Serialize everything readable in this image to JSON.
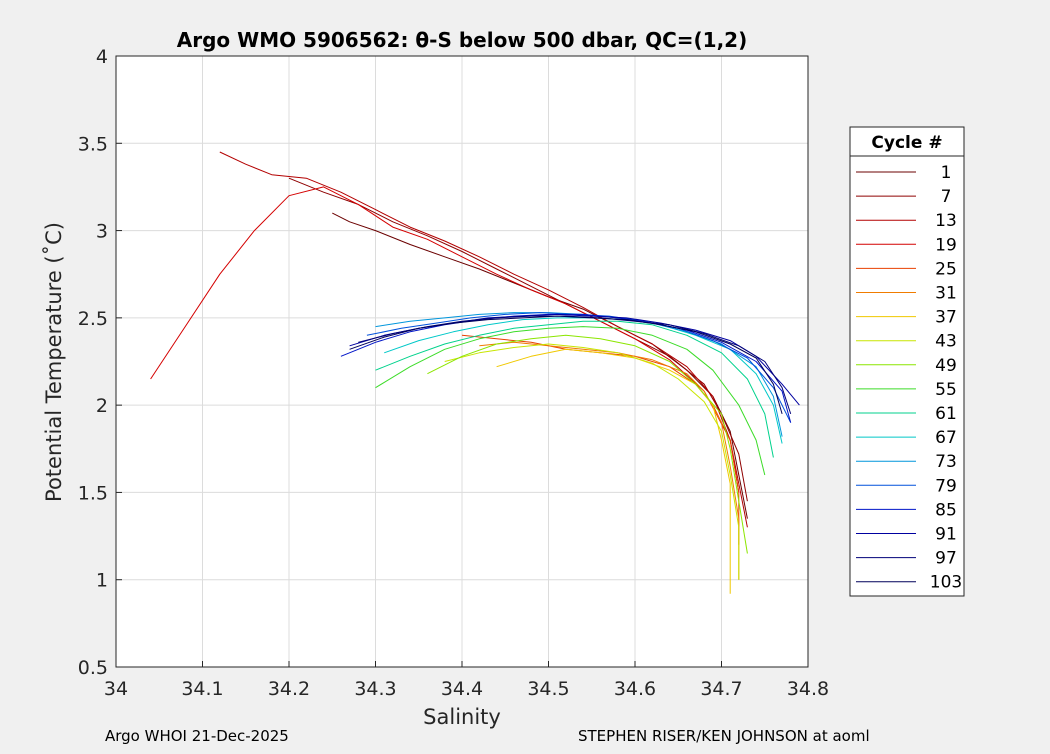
{
  "chart_data": {
    "type": "line",
    "title": "Argo WMO 5906562: θ-S below 500 dbar,  QC=(1,2)",
    "xlabel": "Salinity",
    "ylabel": "Potential Temperature (˚C)",
    "xlim": [
      34.0,
      34.8
    ],
    "ylim": [
      0.5,
      4.0
    ],
    "xticks": [
      34.0,
      34.1,
      34.2,
      34.3,
      34.4,
      34.5,
      34.6,
      34.7,
      34.8
    ],
    "xtick_labels": [
      "34",
      "34.1",
      "34.2",
      "34.3",
      "34.4",
      "34.5",
      "34.6",
      "34.7",
      "34.8"
    ],
    "yticks": [
      0.5,
      1.0,
      1.5,
      2.0,
      2.5,
      3.0,
      3.5,
      4.0
    ],
    "ytick_labels": [
      "0.5",
      "1",
      "1.5",
      "2",
      "2.5",
      "3",
      "3.5",
      "4"
    ],
    "grid": true,
    "legend_position": "right",
    "legend_title": "Cycle #",
    "series": [
      {
        "name": "1",
        "color": "#6b0000",
        "x": [
          34.25,
          34.27,
          34.3,
          34.34,
          34.38,
          34.42,
          34.46,
          34.5,
          34.54,
          34.58,
          34.62,
          34.66,
          34.69,
          34.71,
          34.72,
          34.73
        ],
        "y": [
          3.1,
          3.05,
          3.0,
          2.92,
          2.85,
          2.78,
          2.7,
          2.62,
          2.55,
          2.45,
          2.35,
          2.2,
          2.05,
          1.85,
          1.6,
          1.35
        ]
      },
      {
        "name": "7",
        "color": "#8f0000",
        "x": [
          34.2,
          34.24,
          34.28,
          34.32,
          34.36,
          34.4,
          34.44,
          34.48,
          34.52,
          34.56,
          34.6,
          34.64,
          34.68,
          34.7,
          34.72,
          34.73
        ],
        "y": [
          3.3,
          3.22,
          3.15,
          3.05,
          2.97,
          2.88,
          2.78,
          2.68,
          2.58,
          2.48,
          2.38,
          2.28,
          2.12,
          1.95,
          1.72,
          1.45
        ]
      },
      {
        "name": "13",
        "color": "#b30000",
        "x": [
          34.12,
          34.15,
          34.18,
          34.22,
          34.26,
          34.3,
          34.34,
          34.38,
          34.42,
          34.46,
          34.5,
          34.54,
          34.58,
          34.62,
          34.66,
          34.69,
          34.71,
          34.72,
          34.73
        ],
        "y": [
          3.45,
          3.38,
          3.32,
          3.3,
          3.22,
          3.12,
          3.02,
          2.94,
          2.85,
          2.75,
          2.66,
          2.56,
          2.45,
          2.35,
          2.22,
          2.05,
          1.8,
          1.55,
          1.3
        ]
      },
      {
        "name": "19",
        "color": "#d40000",
        "x": [
          34.04,
          34.08,
          34.12,
          34.16,
          34.2,
          34.24,
          34.28,
          34.32,
          34.36,
          34.4,
          34.44,
          34.48,
          34.52,
          34.56,
          34.6,
          34.64,
          34.68,
          34.71,
          34.72
        ],
        "y": [
          2.15,
          2.45,
          2.75,
          3.0,
          3.2,
          3.25,
          3.15,
          3.02,
          2.95,
          2.85,
          2.75,
          2.66,
          2.58,
          2.48,
          2.38,
          2.26,
          2.08,
          1.8,
          1.5
        ]
      },
      {
        "name": "25",
        "color": "#e84000",
        "x": [
          34.4,
          34.44,
          34.48,
          34.52,
          34.56,
          34.6,
          34.64,
          34.67,
          34.69,
          34.71,
          34.72,
          34.72
        ],
        "y": [
          2.4,
          2.38,
          2.36,
          2.32,
          2.3,
          2.28,
          2.22,
          2.12,
          2.0,
          1.8,
          1.5,
          1.2
        ]
      },
      {
        "name": "31",
        "color": "#f07c00",
        "x": [
          34.42,
          34.46,
          34.5,
          34.54,
          34.58,
          34.62,
          34.66,
          34.68,
          34.7,
          34.71,
          34.72,
          34.72
        ],
        "y": [
          2.34,
          2.36,
          2.34,
          2.32,
          2.3,
          2.26,
          2.18,
          2.08,
          1.9,
          1.65,
          1.35,
          1.0
        ]
      },
      {
        "name": "37",
        "color": "#f0c800",
        "x": [
          34.44,
          34.48,
          34.52,
          34.56,
          34.6,
          34.64,
          34.67,
          34.69,
          34.7,
          34.71,
          34.71,
          34.71
        ],
        "y": [
          2.22,
          2.28,
          2.32,
          2.3,
          2.27,
          2.2,
          2.12,
          2.0,
          1.8,
          1.55,
          1.2,
          0.92
        ]
      },
      {
        "name": "43",
        "color": "#c8e600",
        "x": [
          34.38,
          34.42,
          34.46,
          34.5,
          34.54,
          34.58,
          34.62,
          34.65,
          34.68,
          34.7,
          34.71,
          34.72,
          34.72
        ],
        "y": [
          2.25,
          2.3,
          2.33,
          2.35,
          2.33,
          2.3,
          2.24,
          2.15,
          2.02,
          1.85,
          1.6,
          1.3,
          1.0
        ]
      },
      {
        "name": "49",
        "color": "#8ce600",
        "x": [
          34.36,
          34.4,
          34.44,
          34.48,
          34.52,
          34.56,
          34.6,
          34.64,
          34.67,
          34.7,
          34.71,
          34.72,
          34.73
        ],
        "y": [
          2.18,
          2.28,
          2.35,
          2.38,
          2.4,
          2.38,
          2.34,
          2.25,
          2.12,
          1.95,
          1.75,
          1.45,
          1.15
        ]
      },
      {
        "name": "55",
        "color": "#3cdc28",
        "x": [
          34.3,
          34.34,
          34.38,
          34.42,
          34.46,
          34.5,
          34.54,
          34.58,
          34.62,
          34.66,
          34.69,
          34.72,
          34.74,
          34.75
        ],
        "y": [
          2.1,
          2.22,
          2.32,
          2.38,
          2.42,
          2.44,
          2.45,
          2.44,
          2.4,
          2.32,
          2.2,
          2.0,
          1.8,
          1.6
        ]
      },
      {
        "name": "61",
        "color": "#00d28c",
        "x": [
          34.3,
          34.34,
          34.38,
          34.42,
          34.46,
          34.5,
          34.54,
          34.58,
          34.62,
          34.66,
          34.7,
          34.73,
          34.75,
          34.76
        ],
        "y": [
          2.2,
          2.28,
          2.35,
          2.4,
          2.44,
          2.46,
          2.48,
          2.48,
          2.46,
          2.4,
          2.3,
          2.15,
          1.95,
          1.7
        ]
      },
      {
        "name": "67",
        "color": "#00c8c8",
        "x": [
          34.31,
          34.35,
          34.39,
          34.43,
          34.47,
          34.51,
          34.55,
          34.59,
          34.63,
          34.67,
          34.71,
          34.74,
          34.76,
          34.77
        ],
        "y": [
          2.3,
          2.37,
          2.42,
          2.46,
          2.49,
          2.5,
          2.5,
          2.49,
          2.46,
          2.4,
          2.32,
          2.18,
          2.0,
          1.78
        ]
      },
      {
        "name": "73",
        "color": "#0096dc",
        "x": [
          34.3,
          34.34,
          34.38,
          34.42,
          34.46,
          34.5,
          34.54,
          34.58,
          34.62,
          34.66,
          34.7,
          34.74,
          34.76,
          34.77
        ],
        "y": [
          2.45,
          2.48,
          2.5,
          2.52,
          2.53,
          2.53,
          2.52,
          2.5,
          2.47,
          2.42,
          2.35,
          2.22,
          2.05,
          1.82
        ]
      },
      {
        "name": "79",
        "color": "#0050dc",
        "x": [
          34.29,
          34.33,
          34.37,
          34.41,
          34.45,
          34.49,
          34.53,
          34.57,
          34.61,
          34.65,
          34.69,
          34.73,
          34.76,
          34.78
        ],
        "y": [
          2.4,
          2.44,
          2.47,
          2.5,
          2.52,
          2.53,
          2.52,
          2.51,
          2.48,
          2.44,
          2.37,
          2.27,
          2.1,
          1.9
        ]
      },
      {
        "name": "85",
        "color": "#0014c8",
        "x": [
          34.26,
          34.3,
          34.34,
          34.38,
          34.42,
          34.46,
          34.5,
          34.54,
          34.58,
          34.62,
          34.66,
          34.7,
          34.74,
          34.77,
          34.78
        ],
        "y": [
          2.28,
          2.36,
          2.42,
          2.46,
          2.49,
          2.51,
          2.52,
          2.52,
          2.5,
          2.47,
          2.43,
          2.36,
          2.25,
          2.08,
          1.9
        ]
      },
      {
        "name": "91",
        "color": "#0000a0",
        "x": [
          34.27,
          34.31,
          34.35,
          34.39,
          34.43,
          34.47,
          34.51,
          34.55,
          34.59,
          34.63,
          34.67,
          34.71,
          34.74,
          34.77,
          34.79
        ],
        "y": [
          2.34,
          2.4,
          2.44,
          2.47,
          2.5,
          2.51,
          2.52,
          2.51,
          2.5,
          2.47,
          2.43,
          2.37,
          2.28,
          2.12,
          2.0
        ]
      },
      {
        "name": "97",
        "color": "#000078",
        "x": [
          34.28,
          34.32,
          34.36,
          34.4,
          34.44,
          34.48,
          34.52,
          34.56,
          34.6,
          34.64,
          34.68,
          34.72,
          34.75,
          34.77,
          34.78
        ],
        "y": [
          2.36,
          2.41,
          2.45,
          2.48,
          2.5,
          2.51,
          2.51,
          2.5,
          2.48,
          2.46,
          2.41,
          2.34,
          2.25,
          2.1,
          1.95
        ]
      },
      {
        "name": "103",
        "color": "#00005a",
        "x": [
          34.27,
          34.31,
          34.35,
          34.39,
          34.43,
          34.47,
          34.51,
          34.55,
          34.59,
          34.63,
          34.67,
          34.71,
          34.74,
          34.76,
          34.77
        ],
        "y": [
          2.32,
          2.39,
          2.44,
          2.47,
          2.49,
          2.5,
          2.51,
          2.5,
          2.49,
          2.46,
          2.42,
          2.35,
          2.27,
          2.12,
          1.95
        ]
      }
    ]
  },
  "footer": {
    "left": "Argo WHOI 21-Dec-2025",
    "right": "STEPHEN RISER/KEN JOHNSON at aoml"
  }
}
